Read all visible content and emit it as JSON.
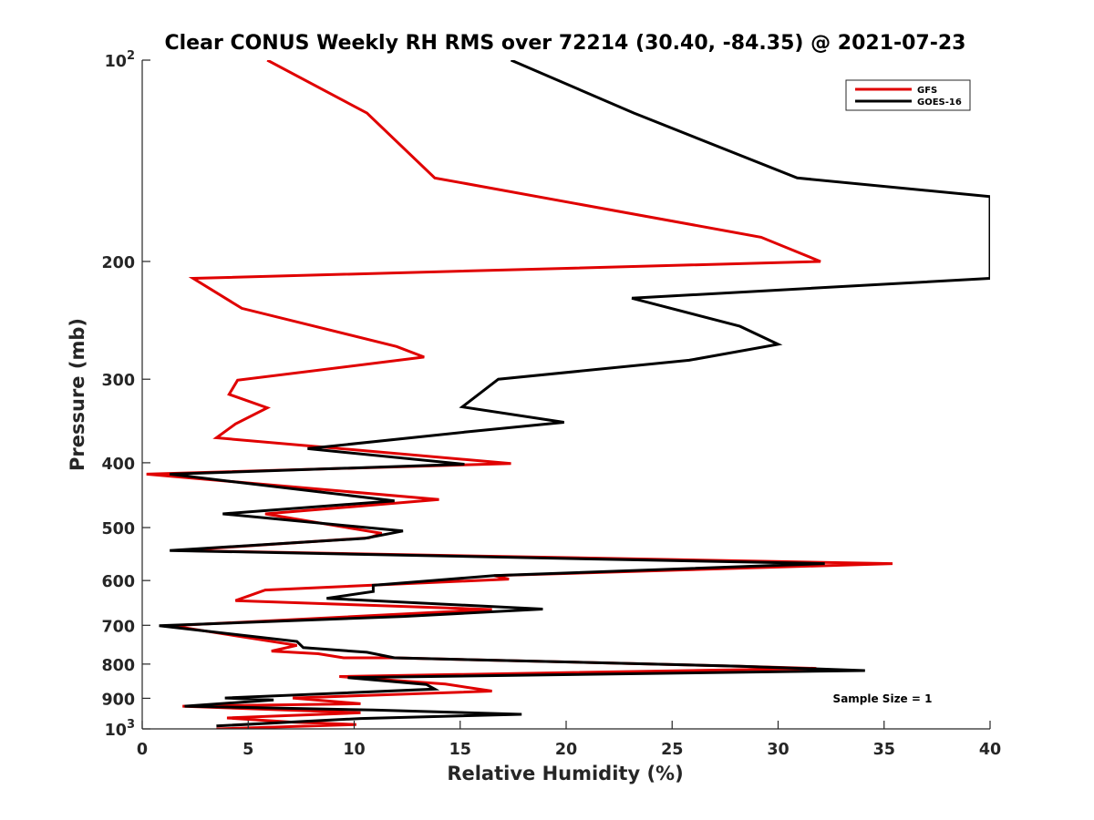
{
  "chart_data": {
    "type": "line",
    "title": "Clear CONUS Weekly RH RMS over 72214 (30.40, -84.35) @ 2021-07-23",
    "xlabel": "Relative Humidity (%)",
    "ylabel": "Pressure (mb)",
    "xlim": [
      0,
      40
    ],
    "ylim": [
      100,
      1000
    ],
    "yscale": "log",
    "y_reversed": true,
    "x_ticks": [
      "0",
      "5",
      "10",
      "15",
      "20",
      "25",
      "30",
      "35",
      "40"
    ],
    "y_ticks": [
      {
        "value": 100,
        "label": "10",
        "exp": "2"
      },
      {
        "value": 200,
        "label": "200"
      },
      {
        "value": 300,
        "label": "300"
      },
      {
        "value": 400,
        "label": "400"
      },
      {
        "value": 500,
        "label": "500"
      },
      {
        "value": 600,
        "label": "600"
      },
      {
        "value": 700,
        "label": "700"
      },
      {
        "value": 800,
        "label": "800"
      },
      {
        "value": 900,
        "label": "900"
      },
      {
        "value": 1000,
        "label": "10",
        "exp": "3"
      }
    ],
    "legend_position": "top-right",
    "annotation": "Sample Size = 1",
    "series": [
      {
        "name": "GFS",
        "color": "#e00000",
        "points": [
          [
            5.9,
            100
          ],
          [
            10.6,
            120
          ],
          [
            13.8,
            150
          ],
          [
            29.2,
            184
          ],
          [
            32.0,
            200
          ],
          [
            2.4,
            212
          ],
          [
            4.7,
            235
          ],
          [
            12.0,
            268
          ],
          [
            13.3,
            278
          ],
          [
            4.5,
            301
          ],
          [
            4.1,
            316
          ],
          [
            5.9,
            331
          ],
          [
            4.4,
            350
          ],
          [
            3.5,
            367
          ],
          [
            17.4,
            401
          ],
          [
            0.2,
            416
          ],
          [
            14.0,
            454
          ],
          [
            5.8,
            477
          ],
          [
            11.3,
            510
          ],
          [
            10.7,
            518
          ],
          [
            1.7,
            541
          ],
          [
            35.4,
            566
          ],
          [
            16.6,
            590
          ],
          [
            17.3,
            597
          ],
          [
            5.8,
            620
          ],
          [
            4.4,
            643
          ],
          [
            16.5,
            663
          ],
          [
            1.4,
            701
          ],
          [
            7.3,
            750
          ],
          [
            6.1,
            765
          ],
          [
            8.3,
            772
          ],
          [
            9.5,
            783
          ],
          [
            11.9,
            783
          ],
          [
            28.2,
            806
          ],
          [
            31.8,
            812
          ],
          [
            9.3,
            835
          ],
          [
            14.3,
            857
          ],
          [
            16.5,
            878
          ],
          [
            7.1,
            899
          ],
          [
            10.3,
            917
          ],
          [
            1.9,
            925
          ],
          [
            10.3,
            946
          ],
          [
            4.0,
            963
          ],
          [
            7.1,
            977
          ],
          [
            10.1,
            985
          ],
          [
            3.5,
            1000
          ]
        ]
      },
      {
        "name": "GOES-16",
        "color": "#000000",
        "points": [
          [
            17.4,
            100
          ],
          [
            23.2,
            120
          ],
          [
            30.9,
            150
          ],
          [
            40.0,
            160
          ],
          [
            40.0,
            212
          ],
          [
            23.1,
            227
          ],
          [
            28.2,
            250
          ],
          [
            30.0,
            266
          ],
          [
            25.8,
            281
          ],
          [
            16.8,
            300
          ],
          [
            15.1,
            330
          ],
          [
            19.9,
            348
          ],
          [
            15.2,
            360
          ],
          [
            7.8,
            381
          ],
          [
            15.2,
            402
          ],
          [
            1.3,
            416
          ],
          [
            11.9,
            456
          ],
          [
            3.8,
            477
          ],
          [
            12.3,
            506
          ],
          [
            10.5,
            519
          ],
          [
            1.3,
            541
          ],
          [
            32.2,
            566
          ],
          [
            16.6,
            590
          ],
          [
            10.9,
            610
          ],
          [
            10.9,
            623
          ],
          [
            8.7,
            638
          ],
          [
            18.9,
            662
          ],
          [
            12.3,
            679
          ],
          [
            0.8,
            701
          ],
          [
            7.3,
            740
          ],
          [
            7.6,
            756
          ],
          [
            10.6,
            768
          ],
          [
            11.9,
            783
          ],
          [
            28.2,
            806
          ],
          [
            34.1,
            818
          ],
          [
            9.7,
            838
          ],
          [
            13.4,
            858
          ],
          [
            13.8,
            872
          ],
          [
            3.9,
            899
          ],
          [
            6.2,
            905
          ],
          [
            2.0,
            925
          ],
          [
            10.9,
            937
          ],
          [
            17.9,
            951
          ],
          [
            10.3,
            965
          ],
          [
            3.5,
            990
          ]
        ]
      }
    ]
  }
}
